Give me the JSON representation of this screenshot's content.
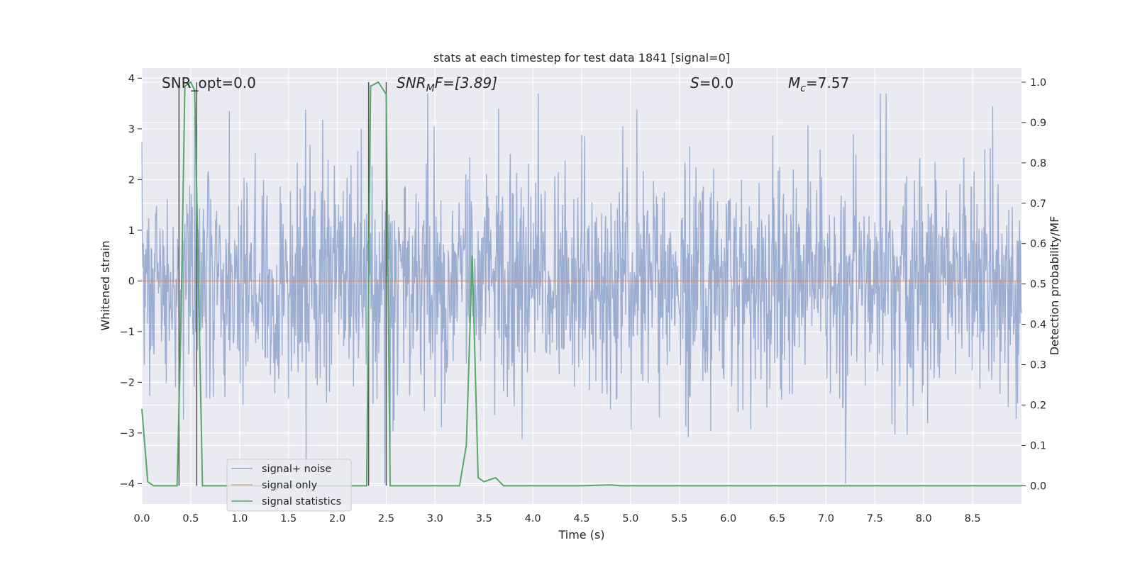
{
  "chart_data": {
    "type": "line",
    "title": "stats at each timestep for test data 1841 [signal=0]",
    "xlabel": "Time (s)",
    "ylabel": "Whitened strain",
    "y2label": "Detection probability/MF",
    "xlim": [
      0,
      9.0
    ],
    "ylim": [
      -4.4,
      4.2
    ],
    "y2lim": [
      -0.045,
      1.035
    ],
    "grid": true,
    "legend_position": "lower-left",
    "xticks": [
      "0.0",
      "0.5",
      "1.0",
      "1.5",
      "2.0",
      "2.5",
      "3.0",
      "3.5",
      "4.0",
      "4.5",
      "5.0",
      "5.5",
      "6.0",
      "6.5",
      "7.0",
      "7.5",
      "8.0",
      "8.5"
    ],
    "yticks": [
      "4",
      "3",
      "2",
      "1",
      "0",
      "−1",
      "−2",
      "−3",
      "−4"
    ],
    "y2ticks": [
      "1.0",
      "0.9",
      "0.8",
      "0.7",
      "0.6",
      "0.5",
      "0.4",
      "0.3",
      "0.2",
      "0.1",
      "0.0"
    ],
    "annotations": {
      "snr_opt": "SNR_opt=0.0",
      "snr_mf_main": "SNR",
      "snr_mf_sub": "M",
      "snr_mf_rest": "F=[3.89]",
      "s_main": "S",
      "s_rest": "=0.0",
      "mc_main": "M",
      "mc_sub": "c",
      "mc_rest": "=7.57"
    },
    "series": [
      {
        "name": "signal+ noise",
        "color": "#4c72b0",
        "kind": "noise",
        "sample_rate_hz": 200,
        "typical_amplitude": 1.45,
        "peak_range": [
          -4.0,
          3.7
        ]
      },
      {
        "name": "signal only",
        "color": "#dd8452",
        "kind": "constant",
        "value": 0
      },
      {
        "name": "signal statistics",
        "color": "#55a868",
        "axis": "right",
        "x": [
          0.0,
          0.06,
          0.12,
          0.18,
          0.24,
          0.3,
          0.36,
          0.4,
          0.44,
          0.5,
          0.54,
          0.58,
          0.62,
          0.68,
          0.8,
          1.0,
          1.5,
          2.0,
          2.25,
          2.3,
          2.34,
          2.42,
          2.5,
          2.54,
          2.6,
          3.0,
          3.25,
          3.32,
          3.38,
          3.44,
          3.5,
          3.56,
          3.62,
          3.7,
          4.0,
          4.5,
          4.8,
          4.9,
          5.0,
          5.5,
          6.0,
          6.5,
          7.0,
          7.5,
          8.0,
          8.5,
          9.0
        ],
        "y": [
          0.19,
          0.01,
          0.0,
          0.0,
          0.0,
          0.0,
          0.0,
          0.4,
          0.99,
          1.0,
          0.98,
          0.5,
          0.0,
          0.0,
          0.0,
          0.0,
          0.0,
          0.0,
          0.0,
          0.0,
          0.99,
          1.0,
          0.97,
          0.0,
          0.0,
          0.0,
          0.0,
          0.1,
          0.57,
          0.02,
          0.01,
          0.015,
          0.02,
          0.0,
          0.0,
          0.0,
          0.002,
          0.0,
          0.0,
          0.0,
          0.0,
          0.0,
          0.0,
          0.0,
          0.0,
          0.0,
          0.0
        ]
      }
    ],
    "vertical_markers": [
      0.38,
      0.56,
      2.32,
      2.5
    ]
  },
  "legend": [
    {
      "label": "signal+ noise",
      "color": "#4c72b0"
    },
    {
      "label": "signal only",
      "color": "#dd8452"
    },
    {
      "label": "signal statistics",
      "color": "#55a868"
    }
  ]
}
